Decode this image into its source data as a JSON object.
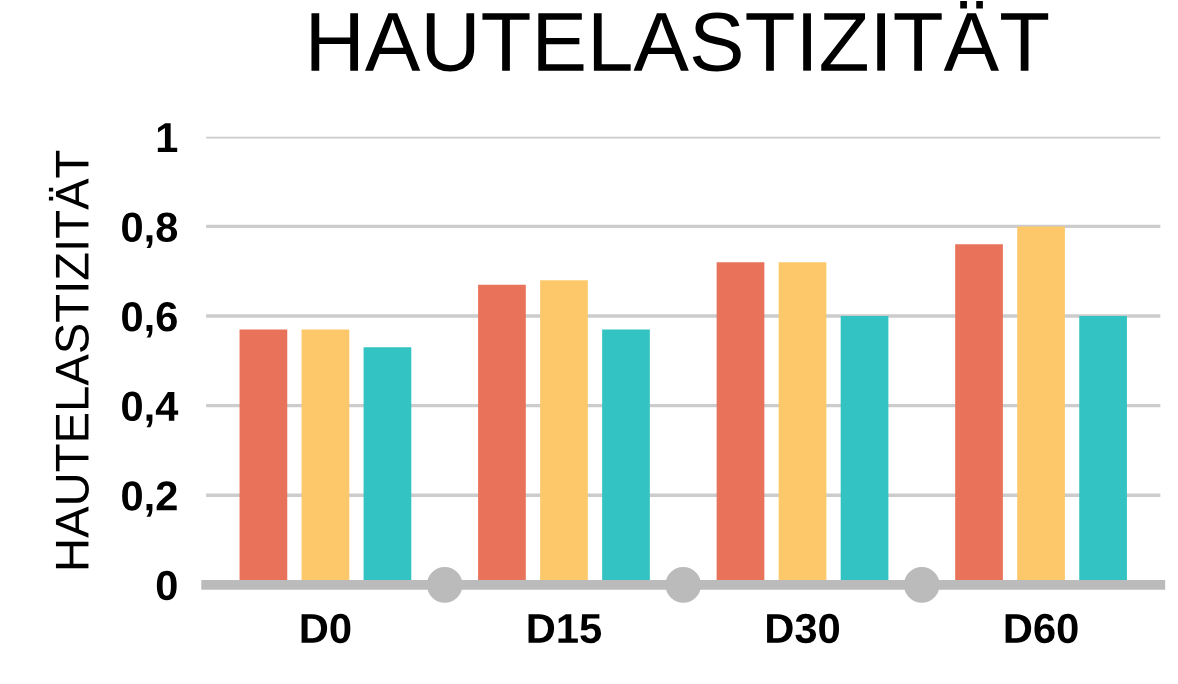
{
  "chart_data": {
    "type": "bar",
    "title": "HAUTELASTIZITÄT",
    "ylabel": "HAUTELASTIZITÄT",
    "categories": [
      "D0",
      "D15",
      "D30",
      "D60"
    ],
    "series": [
      {
        "color": "#e8735a",
        "values": [
          0.57,
          0.67,
          0.72,
          0.76
        ]
      },
      {
        "color": "#fcc86a",
        "values": [
          0.57,
          0.68,
          0.72,
          0.8
        ]
      },
      {
        "color": "#33c3c3",
        "values": [
          0.53,
          0.57,
          0.6,
          0.6
        ]
      }
    ],
    "ylim": [
      0,
      1
    ],
    "yticks": [
      {
        "value": 0,
        "label": "0"
      },
      {
        "value": 0.2,
        "label": "0,2"
      },
      {
        "value": 0.4,
        "label": "0,4"
      },
      {
        "value": 0.6,
        "label": "0,6"
      },
      {
        "value": 0.8,
        "label": "0,8"
      },
      {
        "value": 1,
        "label": "1"
      }
    ],
    "grid": "y",
    "legend": false
  }
}
